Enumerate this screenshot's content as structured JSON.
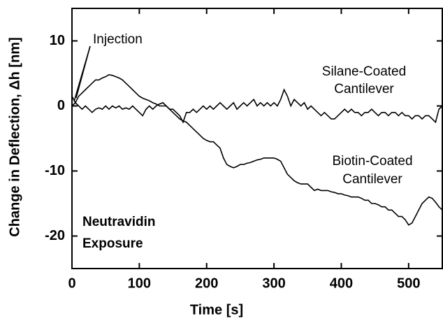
{
  "chart_data": {
    "type": "line",
    "xlabel": "Time [s]",
    "ylabel": "Change in Deflection, Δh [nm]",
    "xlim": [
      0,
      550
    ],
    "xticks": [
      0,
      100,
      200,
      300,
      400,
      500
    ],
    "ylim": [
      -25,
      15
    ],
    "yticks": [
      -20,
      -10,
      0,
      10
    ],
    "annotations": [
      {
        "lines": [
          "Injection"
        ]
      },
      {
        "lines": [
          "Neutravidin",
          "Exposure"
        ]
      }
    ],
    "x": [
      0,
      5,
      10,
      15,
      20,
      25,
      30,
      35,
      40,
      45,
      50,
      55,
      60,
      65,
      70,
      75,
      80,
      85,
      90,
      95,
      100,
      105,
      110,
      115,
      120,
      125,
      130,
      135,
      140,
      145,
      150,
      155,
      160,
      165,
      170,
      175,
      180,
      185,
      190,
      195,
      200,
      205,
      210,
      215,
      220,
      225,
      230,
      235,
      240,
      245,
      250,
      255,
      260,
      265,
      270,
      275,
      280,
      285,
      290,
      295,
      300,
      305,
      310,
      315,
      320,
      325,
      330,
      335,
      340,
      345,
      350,
      355,
      360,
      365,
      370,
      375,
      380,
      385,
      390,
      395,
      400,
      405,
      410,
      415,
      420,
      425,
      430,
      435,
      440,
      445,
      450,
      455,
      460,
      465,
      470,
      475,
      480,
      485,
      490,
      495,
      500,
      505,
      510,
      515,
      520,
      525,
      530,
      535,
      540,
      545,
      550
    ],
    "series": [
      {
        "label_lines": [
          "Silane-Coated",
          "Cantilever"
        ],
        "color": "#000000",
        "values": [
          1.5,
          0.5,
          0,
          -0.5,
          0,
          -0.5,
          -1,
          -0.5,
          -0.3,
          -0.5,
          0,
          -0.5,
          0,
          -0.3,
          0,
          -0.5,
          -0.3,
          -0.5,
          0,
          -0.5,
          -1,
          -1.5,
          -0.5,
          0,
          -0.5,
          0,
          0.3,
          0.5,
          0,
          -0.5,
          -0.5,
          -1,
          -1.5,
          -2.5,
          -1,
          -1,
          -0.5,
          -1,
          -0.5,
          0,
          -0.5,
          0,
          -0.5,
          0,
          0.5,
          0,
          -0.5,
          0,
          0.5,
          -0.5,
          0,
          0.5,
          0,
          0.5,
          1,
          0,
          0.5,
          0,
          0.5,
          0,
          0.5,
          0,
          1,
          2.5,
          1.5,
          0,
          1,
          0.5,
          0,
          0.5,
          -0.5,
          0,
          -0.5,
          -1,
          -1.5,
          -1,
          -1.5,
          -2,
          -2,
          -1.5,
          -1,
          -0.5,
          -1,
          -0.5,
          -1,
          -1,
          -1.5,
          -1,
          -1,
          -0.5,
          -1,
          -1.5,
          -1,
          -1,
          -1.5,
          -1,
          -1,
          -1.5,
          -1,
          -1.5,
          -1.5,
          -2,
          -1.5,
          -1.5,
          -2,
          -1.5,
          -1.5,
          -2,
          -2.5,
          -0.5,
          0
        ]
      },
      {
        "label_lines": [
          "Biotin-Coated",
          "Cantilever"
        ],
        "color": "#000000",
        "values": [
          0,
          0.5,
          1.5,
          2,
          2.5,
          3,
          3.5,
          4,
          4,
          4.3,
          4.5,
          4.8,
          4.7,
          4.5,
          4.3,
          4,
          3.5,
          3,
          2.5,
          2,
          1.5,
          1.2,
          1,
          0.8,
          0.5,
          0.3,
          0,
          0,
          0,
          -0.5,
          -1,
          -1.5,
          -2,
          -2.3,
          -2.5,
          -3,
          -3.5,
          -4,
          -4.5,
          -5,
          -5.3,
          -5.5,
          -5.5,
          -6,
          -6.5,
          -8,
          -9,
          -9.3,
          -9.5,
          -9.3,
          -9,
          -9,
          -8.8,
          -8.7,
          -8.5,
          -8.3,
          -8.2,
          -8,
          -8,
          -8,
          -8,
          -8.2,
          -8.5,
          -9.5,
          -10.5,
          -11,
          -11.5,
          -11.8,
          -12,
          -12,
          -12,
          -12.5,
          -13,
          -12.8,
          -13,
          -13,
          -13,
          -13.2,
          -13.3,
          -13.5,
          -13.5,
          -13.7,
          -13.8,
          -14,
          -14,
          -14,
          -14.2,
          -14.5,
          -14.5,
          -15,
          -15,
          -15.2,
          -15.5,
          -15.5,
          -16,
          -16,
          -16.5,
          -17,
          -17,
          -17.5,
          -18.3,
          -18,
          -17,
          -16,
          -15,
          -14.5,
          -14,
          -14.2,
          -14.8,
          -15.5,
          -16
        ]
      }
    ]
  }
}
